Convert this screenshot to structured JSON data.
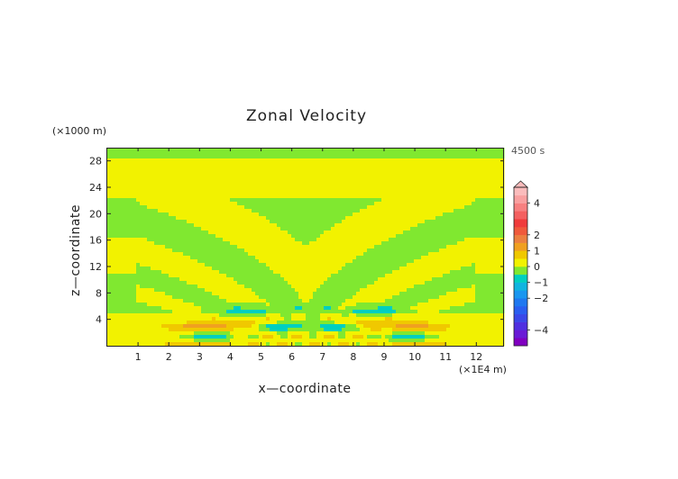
{
  "chart_data": {
    "type": "heatmap",
    "title": "Zonal Velocity",
    "xlabel": "x—coordinate",
    "ylabel": "z—coordinate",
    "x_unit": "(×1E4 m)",
    "y_unit": "(×1000 m)",
    "time_label": "4500 s",
    "xlim": [
      0,
      12.9
    ],
    "ylim": [
      0,
      30
    ],
    "x_ticks": [
      1,
      2,
      3,
      4,
      5,
      6,
      7,
      8,
      9,
      10,
      11,
      12
    ],
    "y_ticks": [
      4,
      8,
      12,
      16,
      20,
      24,
      28
    ],
    "colorbar": {
      "tick_labels": [
        "4",
        "2",
        "1",
        "0",
        "−1",
        "−2",
        "−4"
      ],
      "tick_values": [
        4,
        2,
        1,
        0,
        -1,
        -2,
        -4
      ],
      "levels": [
        -5,
        -4.5,
        -4,
        -3.5,
        -3,
        -2.5,
        -2,
        -1.5,
        -1,
        -0.5,
        0,
        0.5,
        1,
        1.5,
        2,
        2.5,
        3,
        3.5,
        4,
        4.5,
        5
      ],
      "colors": [
        "#8000c0",
        "#6a1ad6",
        "#5030e0",
        "#3a48e8",
        "#2a5ef0",
        "#1f78f0",
        "#1a96f0",
        "#10b4e0",
        "#00cfc0",
        "#80e830",
        "#f2f200",
        "#f0c800",
        "#f0a020",
        "#ec8040",
        "#f05a3c",
        "#f03c3c",
        "#f46060",
        "#f78080",
        "#f9a0a0",
        "#fbbcbc"
      ]
    },
    "background_value": 0.2,
    "features": {
      "band_values": [
        0.35,
        -0.25
      ],
      "wave_center_x": 6.45,
      "orange_lobes": [
        {
          "x": 3.0,
          "z": 2.9,
          "value": 1.3
        },
        {
          "x": 4.4,
          "z": 3.3,
          "value": 1.2
        },
        {
          "x": 8.45,
          "z": 3.3,
          "value": 1.2
        },
        {
          "x": 10.0,
          "z": 2.9,
          "value": 1.3
        },
        {
          "x": 3.0,
          "z": 0.3,
          "value": 1.1
        },
        {
          "x": 10.0,
          "z": 0.3,
          "value": 1.1
        }
      ],
      "cyan_lobes": [
        {
          "x": 3.3,
          "z": 1.3,
          "value": -0.9
        },
        {
          "x": 4.6,
          "z": 5.2,
          "value": -0.8
        },
        {
          "x": 5.6,
          "z": 2.8,
          "value": -0.9
        },
        {
          "x": 7.4,
          "z": 2.8,
          "value": -0.9
        },
        {
          "x": 8.6,
          "z": 5.2,
          "value": -0.8
        },
        {
          "x": 9.8,
          "z": 1.3,
          "value": -0.9
        }
      ]
    }
  }
}
